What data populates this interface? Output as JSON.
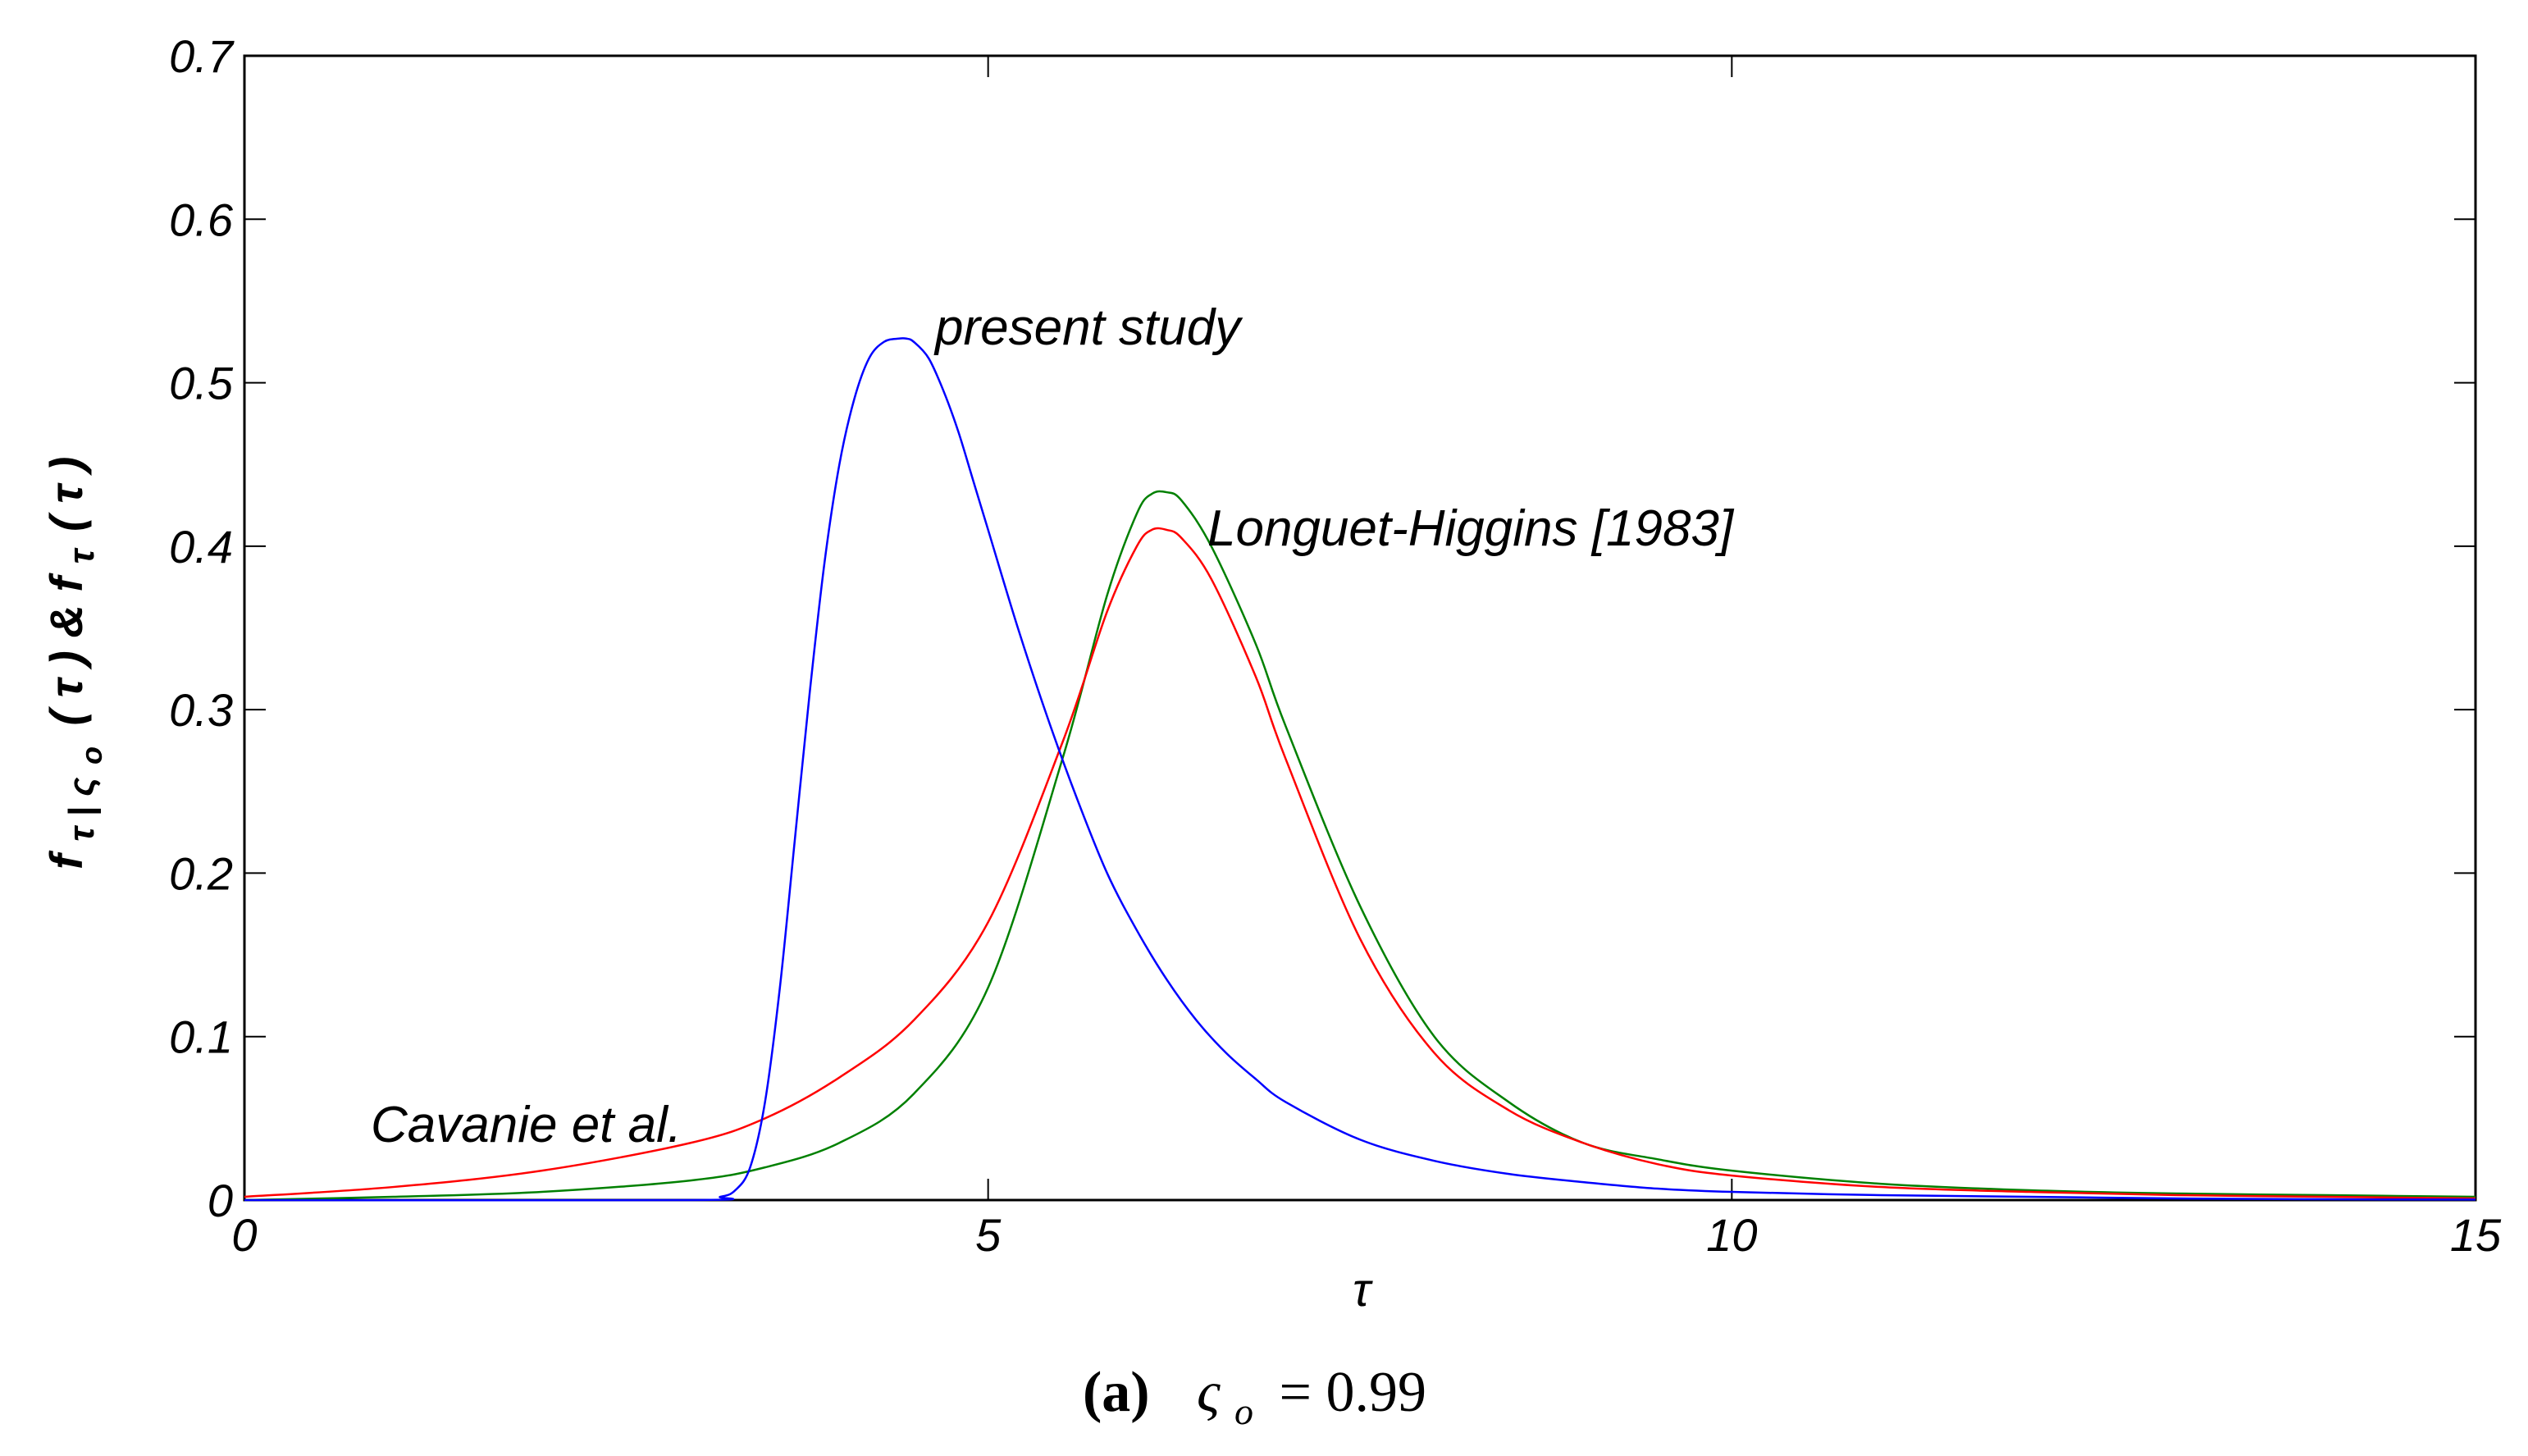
{
  "chart_data": {
    "type": "line",
    "xlabel": "τ",
    "ylabel_parts": {
      "f1": "f",
      "sub1": "τ | ς",
      "sub1b": "o",
      "mid": "( τ ) & f",
      "sub2": "τ",
      "end": "( τ )"
    },
    "xlim": [
      0,
      15
    ],
    "ylim": [
      0,
      0.7
    ],
    "xticks": [
      0,
      5,
      10,
      15
    ],
    "yticks": [
      0,
      0.1,
      0.2,
      0.3,
      0.4,
      0.5,
      0.6,
      0.7
    ],
    "xtick_labels": [
      "0",
      "5",
      "10",
      "15"
    ],
    "ytick_labels": [
      "0",
      "0.1",
      "0.2",
      "0.3",
      "0.4",
      "0.5",
      "0.6",
      "0.7"
    ],
    "grid": false,
    "annotations": {
      "present": "present study",
      "longuet": "Longuet-Higgins [1983]",
      "cavanie": "Cavanie et al."
    },
    "caption": {
      "label": "(a)",
      "symbol": "ς",
      "subscript": "o",
      "equation": "= 0.99"
    },
    "series": [
      {
        "color": "#0000ff",
        "x": [
          0,
          3.0,
          3.2,
          3.3,
          3.4,
          3.5,
          3.6,
          3.7,
          3.8,
          3.9,
          4.0,
          4.1,
          4.2,
          4.3,
          4.4,
          4.45,
          4.5,
          4.6,
          4.7,
          4.8,
          4.9,
          5.0,
          5.2,
          5.4,
          5.6,
          5.8,
          6.0,
          6.2,
          6.4,
          6.6,
          6.8,
          7.0,
          7.5,
          8.0,
          8.5,
          9.0,
          9.5,
          10.0,
          11.0,
          12.0,
          13.0,
          14.0,
          15.0
        ],
        "y": [
          0,
          0,
          0.002,
          0.006,
          0.02,
          0.06,
          0.13,
          0.22,
          0.31,
          0.39,
          0.45,
          0.49,
          0.515,
          0.525,
          0.527,
          0.527,
          0.525,
          0.515,
          0.495,
          0.47,
          0.44,
          0.41,
          0.35,
          0.295,
          0.245,
          0.2,
          0.165,
          0.135,
          0.11,
          0.09,
          0.074,
          0.06,
          0.037,
          0.024,
          0.016,
          0.011,
          0.007,
          0.005,
          0.003,
          0.002,
          0.001,
          0.0005,
          0.0003
        ]
      },
      {
        "color": "#ff0000",
        "x": [
          0,
          1,
          2,
          3,
          3.5,
          4.0,
          4.5,
          5.0,
          5.5,
          5.8,
          6.0,
          6.1,
          6.2,
          6.3,
          6.5,
          6.8,
          7.0,
          7.5,
          8.0,
          8.5,
          9.0,
          9.5,
          10.0,
          11.0,
          12.0,
          13.0,
          14.0,
          15.0
        ],
        "y": [
          0.002,
          0.008,
          0.018,
          0.035,
          0.05,
          0.075,
          0.11,
          0.17,
          0.28,
          0.36,
          0.4,
          0.41,
          0.41,
          0.405,
          0.38,
          0.32,
          0.27,
          0.16,
          0.09,
          0.055,
          0.035,
          0.022,
          0.015,
          0.008,
          0.005,
          0.003,
          0.002,
          0.001
        ]
      },
      {
        "color": "#008000",
        "x": [
          0,
          1,
          2,
          3,
          3.5,
          4.0,
          4.5,
          5.0,
          5.5,
          5.8,
          6.0,
          6.1,
          6.2,
          6.3,
          6.5,
          6.8,
          7.0,
          7.5,
          8.0,
          8.5,
          9.0,
          9.5,
          10.0,
          11.0,
          12.0,
          13.0,
          14.0,
          15.0
        ],
        "y": [
          0.0,
          0.002,
          0.005,
          0.012,
          0.02,
          0.035,
          0.065,
          0.13,
          0.27,
          0.37,
          0.42,
          0.432,
          0.433,
          0.428,
          0.4,
          0.34,
          0.29,
          0.18,
          0.1,
          0.06,
          0.035,
          0.025,
          0.018,
          0.01,
          0.006,
          0.004,
          0.003,
          0.002
        ]
      }
    ]
  }
}
